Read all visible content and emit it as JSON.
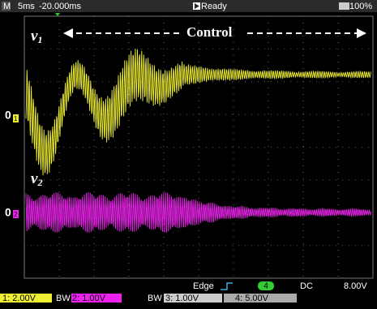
{
  "status_bar": {
    "mode": "M",
    "timebase": "5ms",
    "delay": "-20.000ms",
    "state": "Ready",
    "battery": "100%"
  },
  "annotations": {
    "v1": {
      "letter": "v",
      "sub": "1"
    },
    "v2": {
      "letter": "v",
      "sub": "2"
    },
    "control": "Control"
  },
  "ground_markers": [
    {
      "label": "0",
      "channel": "1"
    },
    {
      "label": "0",
      "channel": "2"
    }
  ],
  "trigger": {
    "type": "Edge",
    "source": "4",
    "coupling": "DC",
    "level": "8.00V"
  },
  "channels": [
    {
      "label": "1: 2.00V",
      "bw": "BW"
    },
    {
      "label": "2: 1.00V",
      "bw": "BW"
    },
    {
      "label": "3: 1.00V"
    },
    {
      "label": "4: 5.00V"
    }
  ]
}
